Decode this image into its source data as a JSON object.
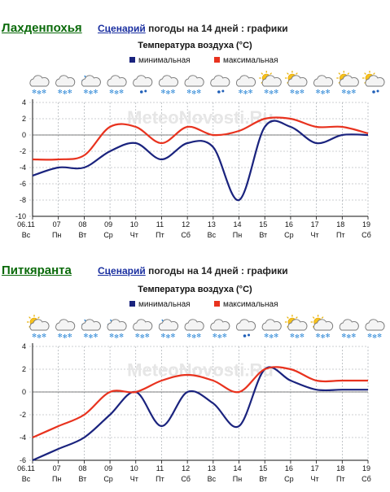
{
  "panels": [
    {
      "city": "Лахденпохья",
      "scenario_link": "Сценарий",
      "scenario_rest": " погоды на 14 дней : графики",
      "chart_title": "Температура воздуха (°C)",
      "legend": [
        "минимальная",
        "максимальная"
      ],
      "watermark": "MeteoNovosti.Ru"
    },
    {
      "city": "Питкяранта",
      "scenario_link": "Сценарий",
      "scenario_rest": " погоды на 14 дней : графики",
      "chart_title": "Температура воздуха (°C)",
      "legend": [
        "минимальная",
        "максимальная"
      ],
      "watermark": "MeteoNovosti.Ru"
    }
  ],
  "colors": {
    "min": "#1a237e",
    "max": "#e8321e",
    "grid": "#9aa0a6",
    "city": "#0a6a0a"
  },
  "chart_data": [
    {
      "type": "line",
      "title": "Температура воздуха (°C)",
      "categories": [
        "06.11",
        "07",
        "08",
        "09",
        "10",
        "11",
        "12",
        "13",
        "14",
        "15",
        "16",
        "17",
        "18",
        "19"
      ],
      "weekdays": [
        "Вс",
        "Пн",
        "Вт",
        "Ср",
        "Чт",
        "Пт",
        "Сб",
        "Вс",
        "Пн",
        "Вт",
        "Ср",
        "Чт",
        "Пт",
        "Сб"
      ],
      "icons": [
        "cloud-snow-icon",
        "cloud-snow-icon",
        "snowflake-cloud-icon",
        "cloud-snow-icon",
        "cloud-rain-icon",
        "cloud-snow-icon",
        "cloud-snow-icon",
        "cloud-rain-icon",
        "cloud-snow-icon",
        "sun-cloud-snow-icon",
        "sun-cloud-snow-icon",
        "cloud-snow-icon",
        "sun-cloud-snow-icon",
        "sun-cloud-rain-icon"
      ],
      "ylim": [
        -10,
        4
      ],
      "yticks": [
        -10,
        -8,
        -6,
        -4,
        -2,
        0,
        2,
        4
      ],
      "series": [
        {
          "name": "минимальная",
          "values": [
            -5,
            -4,
            -4,
            -2,
            -1,
            -3,
            -1,
            -1.5,
            -8,
            1,
            1,
            -1,
            0,
            0
          ]
        },
        {
          "name": "максимальная",
          "values": [
            -3,
            -3,
            -2.5,
            1,
            1,
            -1,
            1,
            0,
            0.5,
            2,
            2,
            1,
            1,
            0.2
          ]
        }
      ]
    },
    {
      "type": "line",
      "title": "Температура воздуха (°C)",
      "categories": [
        "06.11",
        "07",
        "08",
        "09",
        "10",
        "11",
        "12",
        "13",
        "14",
        "15",
        "16",
        "17",
        "18",
        "19"
      ],
      "weekdays": [
        "Вс",
        "Пн",
        "Вт",
        "Ср",
        "Чт",
        "Пт",
        "Сб",
        "Вс",
        "Пн",
        "Вт",
        "Ср",
        "Чт",
        "Пт",
        "Сб"
      ],
      "icons": [
        "sun-cloud-snow-icon",
        "cloud-snow-icon",
        "snowflake-cloud-icon",
        "snowflake-cloud-icon",
        "cloud-snow-icon",
        "snowflake-cloud-icon",
        "cloud-snow-icon",
        "cloud-snow-icon",
        "cloud-rain-icon",
        "cloud-snow-icon",
        "sun-cloud-snow-icon",
        "sun-cloud-snow-icon",
        "cloud-snow-icon",
        "cloud-snow-icon"
      ],
      "ylim": [
        -6,
        4
      ],
      "yticks": [
        -6,
        -4,
        -2,
        0,
        2,
        4
      ],
      "series": [
        {
          "name": "минимальная",
          "values": [
            -6,
            -5,
            -4,
            -2,
            0,
            -3,
            0,
            -1,
            -3,
            2,
            1,
            0.2,
            0.2,
            0.2
          ]
        },
        {
          "name": "максимальная",
          "values": [
            -4,
            -3,
            -2,
            0,
            0,
            1,
            1.5,
            1,
            0,
            2,
            2,
            1,
            1,
            1
          ]
        }
      ]
    }
  ]
}
